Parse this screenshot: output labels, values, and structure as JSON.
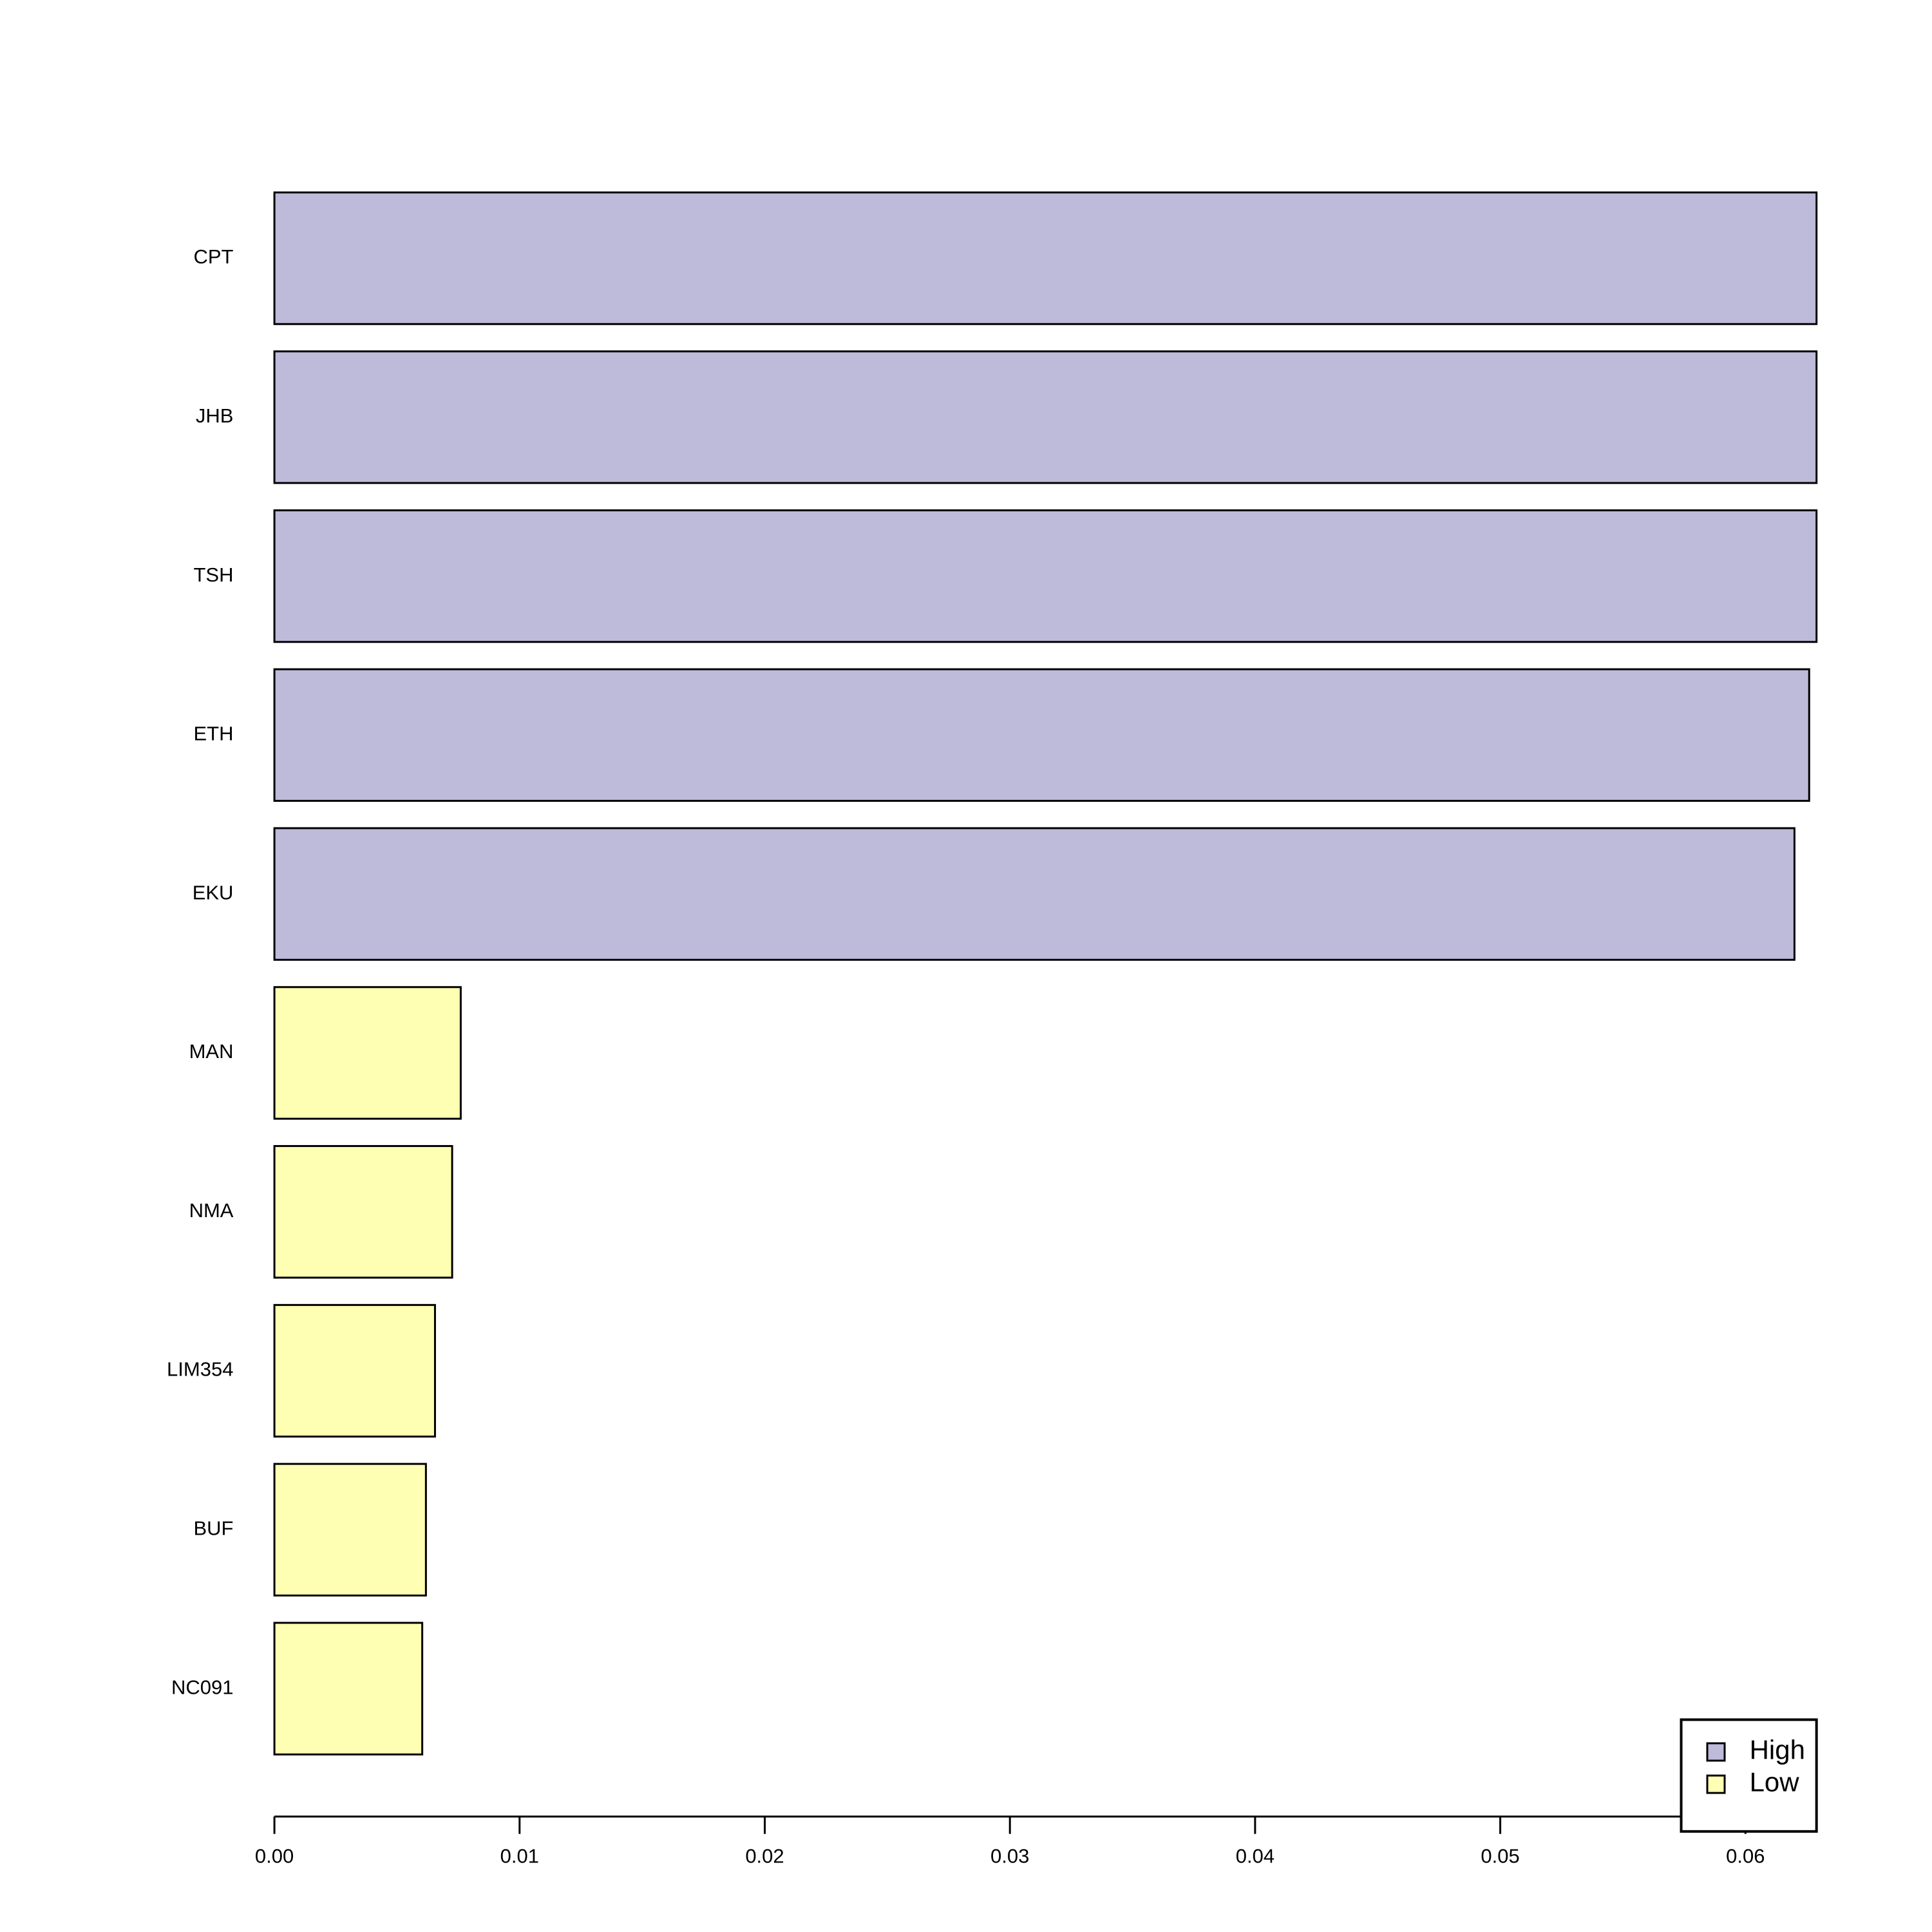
{
  "chart_data": {
    "type": "barh",
    "categories": [
      "CPT",
      "JHB",
      "TSH",
      "ETH",
      "EKU",
      "MAN",
      "NMA",
      "LIM354",
      "BUF",
      "NC091"
    ],
    "series": [
      {
        "name": "High",
        "color": "#bebada",
        "values": [
          0.0629,
          0.0629,
          0.0629,
          0.0626,
          0.062,
          null,
          null,
          null,
          null,
          null
        ]
      },
      {
        "name": "Low",
        "color": "#ffffb3",
        "values": [
          null,
          null,
          null,
          null,
          null,
          0.0076,
          0.00725,
          0.00655,
          0.00618,
          0.00603
        ]
      }
    ],
    "xlim": [
      0,
      0.0629
    ],
    "xticks": [
      {
        "value": 0,
        "label": "0.00"
      },
      {
        "value": 0.01,
        "label": "0.01"
      },
      {
        "value": 0.02,
        "label": "0.02"
      },
      {
        "value": 0.03,
        "label": "0.03"
      },
      {
        "value": 0.04,
        "label": "0.04"
      },
      {
        "value": 0.05,
        "label": "0.05"
      },
      {
        "value": 0.06,
        "label": "0.06"
      }
    ],
    "legend": "bottom-right"
  }
}
